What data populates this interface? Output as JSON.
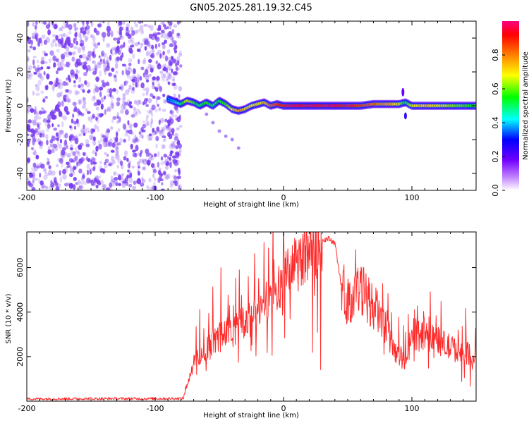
{
  "title": "GN05.2025.281.19.32.C45",
  "colors": {
    "snr_line": "#ff2a2a",
    "noise_dots": "#7a3cf0",
    "axes": "#000000"
  },
  "chart_data": [
    {
      "type": "heatmap",
      "title": "GN05.2025.281.19.32.C45",
      "xlabel": "Height of straight line (km)",
      "ylabel": "Frequency (Hz)",
      "xlim": [
        -200,
        150
      ],
      "ylim": [
        -50,
        50
      ],
      "x_ticks": [
        -200,
        -100,
        0,
        100
      ],
      "x_tick_labels": [
        "-200",
        "-100",
        "0",
        "100"
      ],
      "y_ticks": [
        -40,
        -20,
        0,
        20,
        40
      ],
      "y_tick_labels": [
        "-40",
        "-20",
        "0",
        "20",
        "40"
      ],
      "colorbar": {
        "label": "Normalized spectral amplitude",
        "range": [
          0,
          1
        ],
        "ticks": [
          0.0,
          0.2,
          0.4,
          0.6,
          0.8
        ],
        "tick_labels": [
          "0.0",
          "0.2",
          "0.4",
          "0.6",
          "0.8"
        ]
      },
      "noise_region": {
        "x_start": -200,
        "x_end": -80
      },
      "signal_trace": {
        "x": [
          -90,
          -80,
          -75,
          -70,
          -65,
          -60,
          -55,
          -50,
          -45,
          -40,
          -35,
          -30,
          -25,
          -20,
          -15,
          -10,
          -5,
          0,
          10,
          20,
          30,
          40,
          50,
          60,
          70,
          80,
          90,
          95,
          100,
          110,
          120,
          130,
          140,
          150
        ],
        "freq": [
          4,
          1,
          3,
          2,
          0,
          2,
          0,
          3,
          1,
          -2,
          -3,
          -2,
          0,
          1,
          2,
          0,
          1,
          0,
          0,
          0,
          0,
          0,
          0,
          0,
          1,
          1,
          1,
          2,
          0,
          0,
          0,
          0,
          0,
          0
        ],
        "amplitude": [
          0.3,
          0.5,
          0.7,
          0.6,
          0.5,
          0.6,
          0.5,
          0.55,
          0.6,
          0.7,
          0.8,
          0.75,
          0.7,
          0.7,
          0.75,
          0.85,
          0.9,
          0.95,
          1.0,
          1.0,
          1.0,
          1.0,
          0.95,
          0.9,
          0.85,
          0.8,
          0.7,
          0.5,
          0.7,
          0.75,
          0.7,
          0.65,
          0.6,
          0.55
        ]
      },
      "faint_trace": {
        "x": [
          -60,
          -55,
          -50,
          -45,
          -40,
          -35
        ],
        "freq": [
          -5,
          -10,
          -15,
          -18,
          -20,
          -25
        ]
      }
    },
    {
      "type": "line",
      "xlabel": "Height of straight line (km)",
      "ylabel": "SNR (10 * v/v)",
      "xlim": [
        -200,
        150
      ],
      "ylim": [
        0,
        7600
      ],
      "x_ticks": [
        -200,
        -100,
        0,
        100
      ],
      "x_tick_labels": [
        "-200",
        "-100",
        "0",
        "100"
      ],
      "y_ticks": [
        2000,
        4000,
        6000
      ],
      "y_tick_labels": [
        "2000",
        "4000",
        "6000"
      ],
      "envelope": {
        "x": [
          -200,
          -150,
          -100,
          -78,
          -75,
          -70,
          -60,
          -50,
          -40,
          -30,
          -20,
          -10,
          0,
          10,
          20,
          30,
          35,
          40,
          45,
          50,
          60,
          70,
          80,
          85,
          90,
          95,
          100,
          110,
          120,
          130,
          140,
          150
        ],
        "y": [
          100,
          110,
          110,
          120,
          800,
          1700,
          2400,
          2900,
          3200,
          3500,
          4000,
          4600,
          5400,
          6200,
          6900,
          7250,
          7300,
          7100,
          5200,
          4500,
          5000,
          4300,
          3300,
          2500,
          2100,
          1700,
          3000,
          3100,
          2700,
          2400,
          2200,
          2000
        ]
      }
    }
  ]
}
